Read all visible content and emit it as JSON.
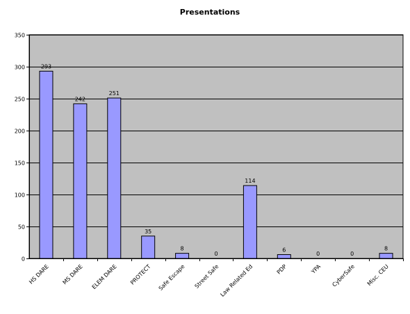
{
  "chart_data": {
    "type": "bar",
    "title": "Presentations",
    "xlabel": "",
    "ylabel": "",
    "categories": [
      "HS DARE",
      "MS DARE",
      "ELEM DARE",
      "PROTECT",
      "Safe Escape",
      "Street Safe",
      "Law Related Ed",
      "PDP",
      "YPA",
      "CyberSafe",
      "Misc. CEU"
    ],
    "values": [
      293,
      242,
      251,
      35,
      8,
      0,
      114,
      6,
      0,
      0,
      8
    ],
    "data_labels": [
      "293",
      "242",
      "251",
      "35",
      "8",
      "0",
      "114",
      "6",
      "0",
      "0",
      "8"
    ],
    "ylim": [
      0,
      350
    ],
    "y_ticks": [
      0,
      50,
      100,
      150,
      200,
      250,
      300,
      350
    ],
    "y_tick_labels": [
      "0",
      "50",
      "100",
      "150",
      "200",
      "250",
      "300",
      "350"
    ],
    "grid": true,
    "legend": "none",
    "colors": {
      "plot_background": "#c0c0c0",
      "bar_fill": "#9999ff",
      "bar_stroke": "#000000",
      "gridline": "#000000",
      "axis": "#000000"
    }
  }
}
